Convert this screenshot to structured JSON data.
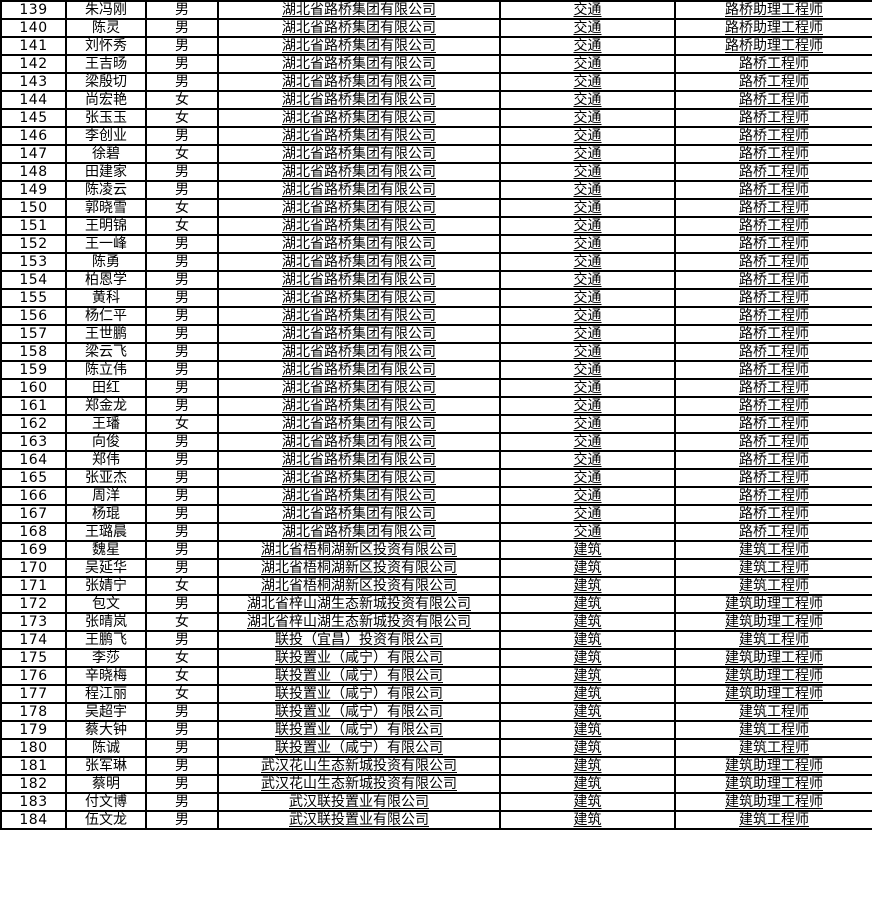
{
  "colors": {
    "background": "#ffffff",
    "grid_border": "#000000",
    "text": "#000000",
    "number_text": "#1f3250"
  },
  "table": {
    "rows": [
      [
        "139",
        "朱冯刚",
        "男",
        "湖北省路桥集团有限公司",
        "交通",
        "路桥助理工程师"
      ],
      [
        "140",
        "陈灵",
        "男",
        "湖北省路桥集团有限公司",
        "交通",
        "路桥助理工程师"
      ],
      [
        "141",
        "刘怀秀",
        "男",
        "湖北省路桥集团有限公司",
        "交通",
        "路桥助理工程师"
      ],
      [
        "142",
        "王吉旸",
        "男",
        "湖北省路桥集团有限公司",
        "交通",
        "路桥工程师"
      ],
      [
        "143",
        "梁殷切",
        "男",
        "湖北省路桥集团有限公司",
        "交通",
        "路桥工程师"
      ],
      [
        "144",
        "尚宏艳",
        "女",
        "湖北省路桥集团有限公司",
        "交通",
        "路桥工程师"
      ],
      [
        "145",
        "张玉玉",
        "女",
        "湖北省路桥集团有限公司",
        "交通",
        "路桥工程师"
      ],
      [
        "146",
        "李创业",
        "男",
        "湖北省路桥集团有限公司",
        "交通",
        "路桥工程师"
      ],
      [
        "147",
        "徐碧",
        "女",
        "湖北省路桥集团有限公司",
        "交通",
        "路桥工程师"
      ],
      [
        "148",
        "田建家",
        "男",
        "湖北省路桥集团有限公司",
        "交通",
        "路桥工程师"
      ],
      [
        "149",
        "陈凌云",
        "男",
        "湖北省路桥集团有限公司",
        "交通",
        "路桥工程师"
      ],
      [
        "150",
        "郭晓雪",
        "女",
        "湖北省路桥集团有限公司",
        "交通",
        "路桥工程师"
      ],
      [
        "151",
        "王明锦",
        "女",
        "湖北省路桥集团有限公司",
        "交通",
        "路桥工程师"
      ],
      [
        "152",
        "王一峰",
        "男",
        "湖北省路桥集团有限公司",
        "交通",
        "路桥工程师"
      ],
      [
        "153",
        "陈勇",
        "男",
        "湖北省路桥集团有限公司",
        "交通",
        "路桥工程师"
      ],
      [
        "154",
        "柏恩学",
        "男",
        "湖北省路桥集团有限公司",
        "交通",
        "路桥工程师"
      ],
      [
        "155",
        "黄科",
        "男",
        "湖北省路桥集团有限公司",
        "交通",
        "路桥工程师"
      ],
      [
        "156",
        "杨仁平",
        "男",
        "湖北省路桥集团有限公司",
        "交通",
        "路桥工程师"
      ],
      [
        "157",
        "王世鹏",
        "男",
        "湖北省路桥集团有限公司",
        "交通",
        "路桥工程师"
      ],
      [
        "158",
        "梁云飞",
        "男",
        "湖北省路桥集团有限公司",
        "交通",
        "路桥工程师"
      ],
      [
        "159",
        "陈立伟",
        "男",
        "湖北省路桥集团有限公司",
        "交通",
        "路桥工程师"
      ],
      [
        "160",
        "田红",
        "男",
        "湖北省路桥集团有限公司",
        "交通",
        "路桥工程师"
      ],
      [
        "161",
        "郑金龙",
        "男",
        "湖北省路桥集团有限公司",
        "交通",
        "路桥工程师"
      ],
      [
        "162",
        "王璠",
        "女",
        "湖北省路桥集团有限公司",
        "交通",
        "路桥工程师"
      ],
      [
        "163",
        "向俊",
        "男",
        "湖北省路桥集团有限公司",
        "交通",
        "路桥工程师"
      ],
      [
        "164",
        "郑伟",
        "男",
        "湖北省路桥集团有限公司",
        "交通",
        "路桥工程师"
      ],
      [
        "165",
        "张亚杰",
        "男",
        "湖北省路桥集团有限公司",
        "交通",
        "路桥工程师"
      ],
      [
        "166",
        "周洋",
        "男",
        "湖北省路桥集团有限公司",
        "交通",
        "路桥工程师"
      ],
      [
        "167",
        "杨琨",
        "男",
        "湖北省路桥集团有限公司",
        "交通",
        "路桥工程师"
      ],
      [
        "168",
        "王璐晨",
        "男",
        "湖北省路桥集团有限公司",
        "交通",
        "路桥工程师"
      ],
      [
        "169",
        "魏星",
        "男",
        "湖北省梧桐湖新区投资有限公司",
        "建筑",
        "建筑工程师"
      ],
      [
        "170",
        "吴延华",
        "男",
        "湖北省梧桐湖新区投资有限公司",
        "建筑",
        "建筑工程师"
      ],
      [
        "171",
        "张婧宁",
        "女",
        "湖北省梧桐湖新区投资有限公司",
        "建筑",
        "建筑工程师"
      ],
      [
        "172",
        "包文",
        "男",
        "湖北省梓山湖生态新城投资有限公司",
        "建筑",
        "建筑助理工程师"
      ],
      [
        "173",
        "张晴岚",
        "女",
        "湖北省梓山湖生态新城投资有限公司",
        "建筑",
        "建筑助理工程师"
      ],
      [
        "174",
        "王鹏飞",
        "男",
        "联投（宜昌）投资有限公司",
        "建筑",
        "建筑工程师"
      ],
      [
        "175",
        "李莎",
        "女",
        "联投置业（咸宁）有限公司",
        "建筑",
        "建筑助理工程师"
      ],
      [
        "176",
        "辛晓梅",
        "女",
        "联投置业（咸宁）有限公司",
        "建筑",
        "建筑助理工程师"
      ],
      [
        "177",
        "程江丽",
        "女",
        "联投置业（咸宁）有限公司",
        "建筑",
        "建筑助理工程师"
      ],
      [
        "178",
        "吴超宇",
        "男",
        "联投置业（咸宁）有限公司",
        "建筑",
        "建筑工程师"
      ],
      [
        "179",
        "蔡大钟",
        "男",
        "联投置业（咸宁）有限公司",
        "建筑",
        "建筑工程师"
      ],
      [
        "180",
        "陈诚",
        "男",
        "联投置业（咸宁）有限公司",
        "建筑",
        "建筑工程师"
      ],
      [
        "181",
        "张军琳",
        "男",
        "武汉花山生态新城投资有限公司",
        "建筑",
        "建筑助理工程师"
      ],
      [
        "182",
        "蔡明",
        "男",
        "武汉花山生态新城投资有限公司",
        "建筑",
        "建筑助理工程师"
      ],
      [
        "183",
        "付文博",
        "男",
        "武汉联投置业有限公司",
        "建筑",
        "建筑助理工程师"
      ],
      [
        "184",
        "伍文龙",
        "男",
        "武汉联投置业有限公司",
        "建筑",
        "建筑工程师"
      ]
    ]
  }
}
